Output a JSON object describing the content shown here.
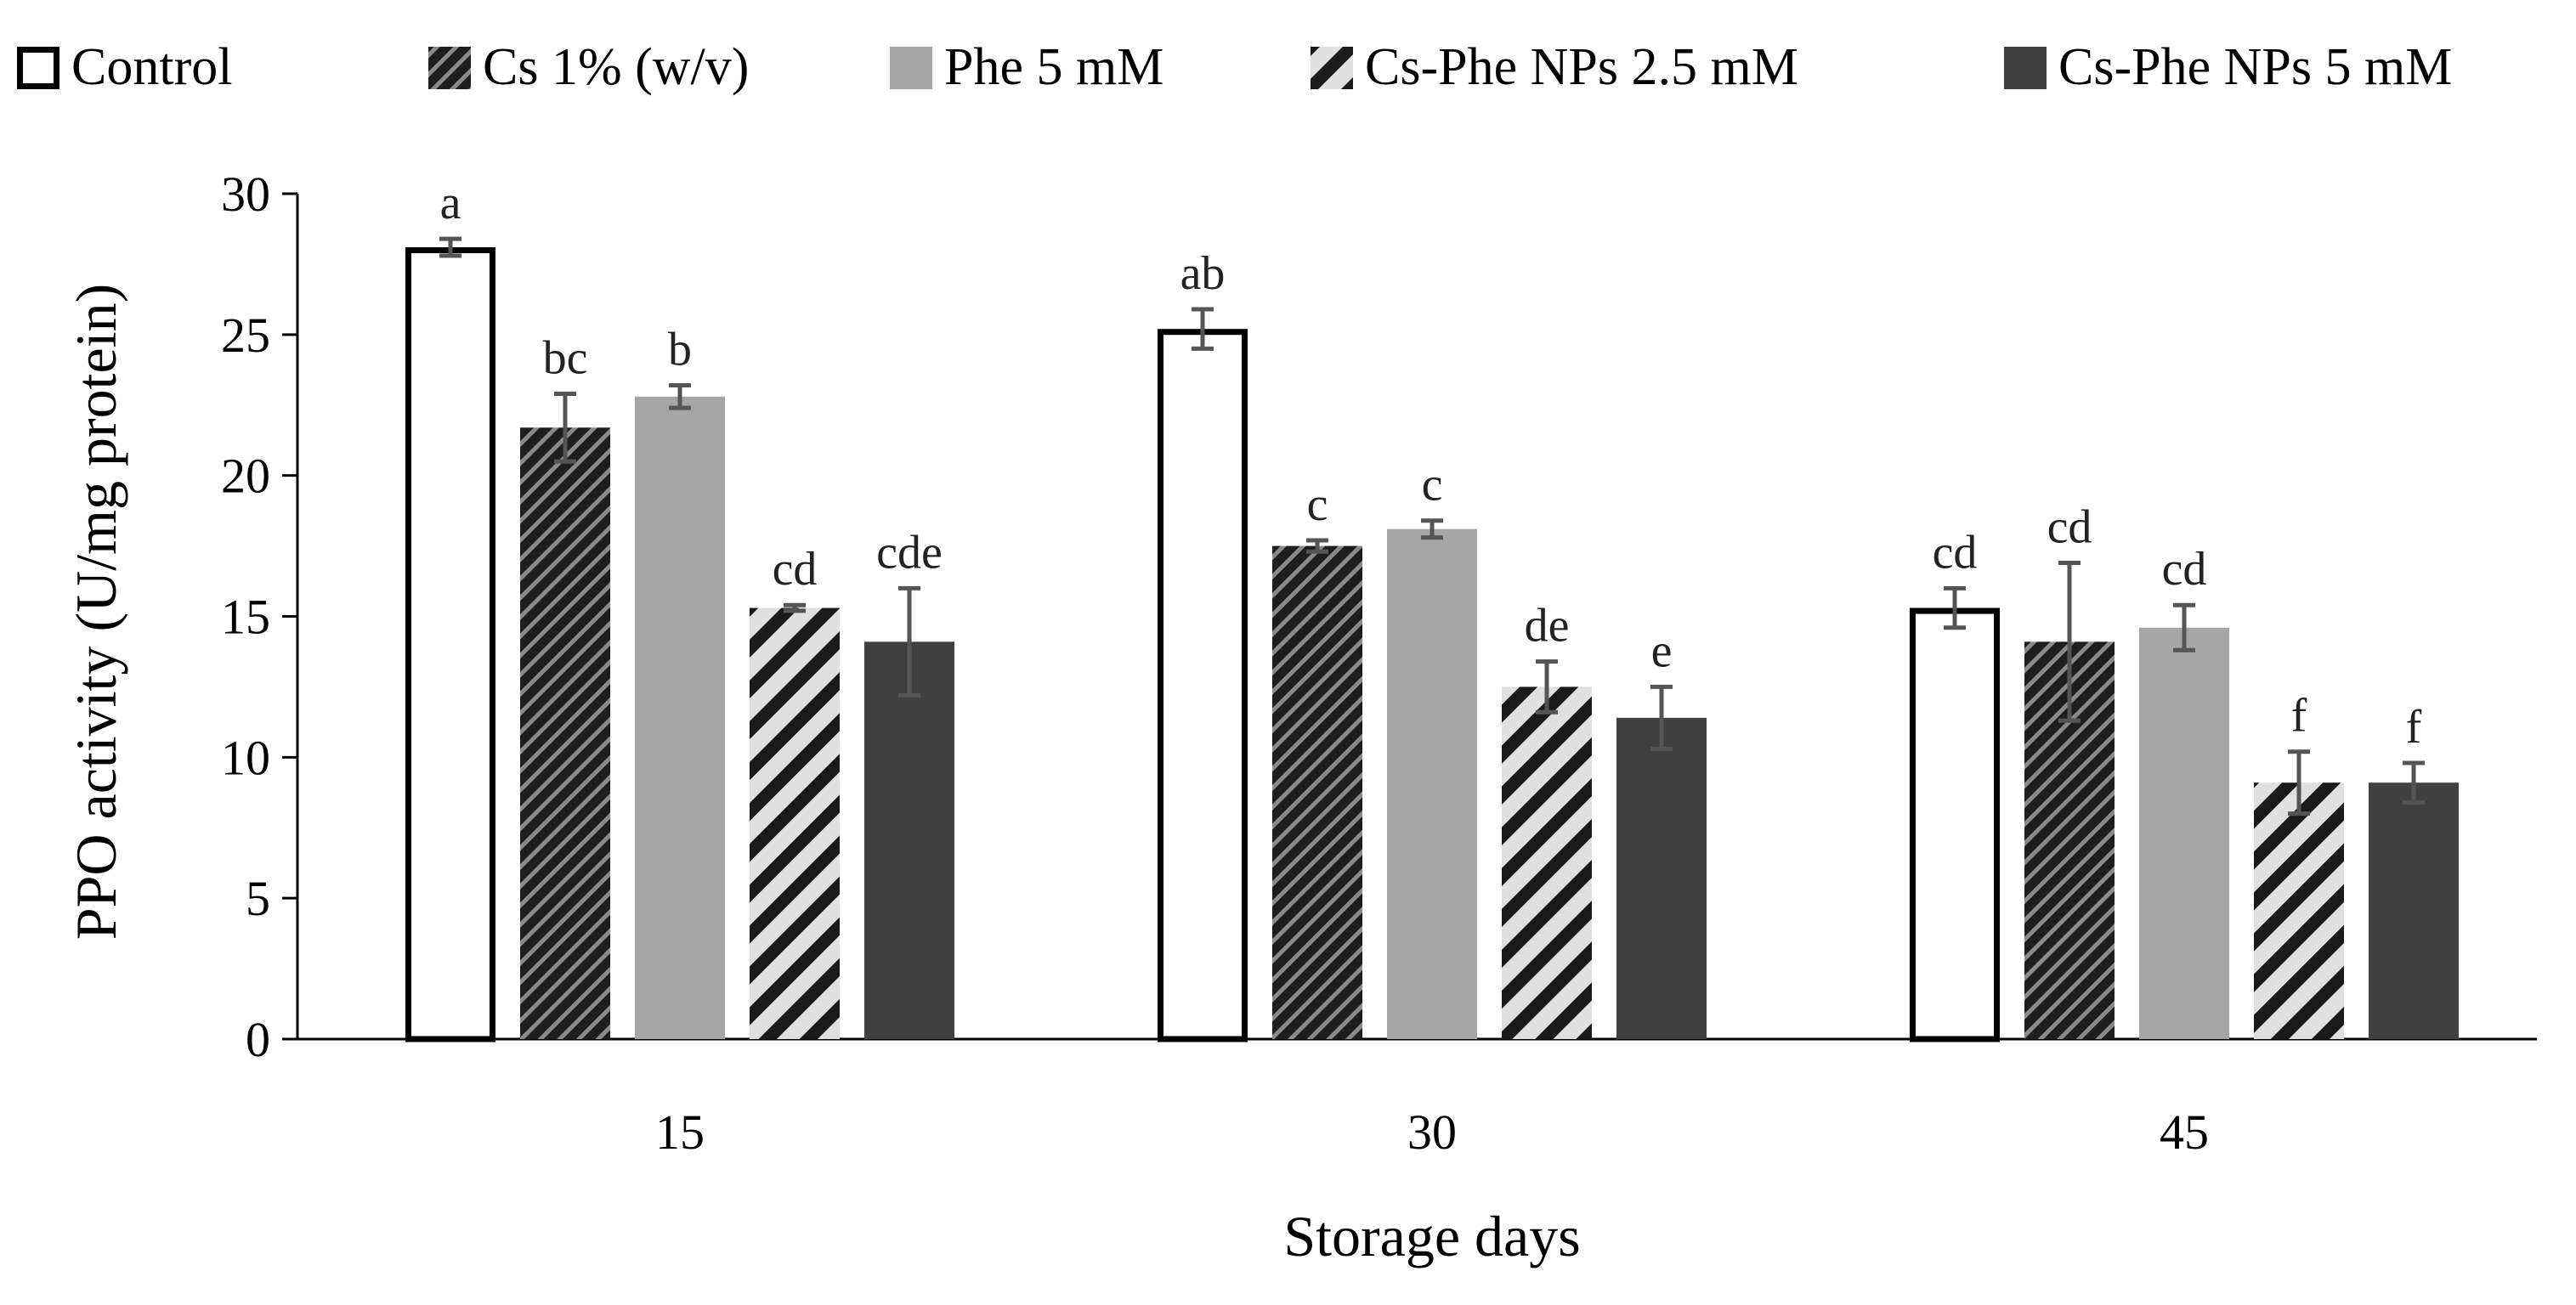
{
  "chart_data": {
    "type": "bar",
    "title": "",
    "xlabel": "Storage days",
    "ylabel": "PPO activity (U/mg protein)",
    "categories": [
      "15",
      "30",
      "45"
    ],
    "ylim": [
      0,
      30
    ],
    "yticks": [
      "0",
      "5",
      "10",
      "15",
      "20",
      "25",
      "30"
    ],
    "legend_position": "top",
    "series": [
      {
        "name": "Control",
        "style": "outline",
        "fill": "#ffffff",
        "stroke": "#000000",
        "values": [
          28.1,
          25.2,
          15.3
        ],
        "errors": [
          0.3,
          0.7,
          0.7
        ],
        "labels": [
          "a",
          "ab",
          "cd"
        ]
      },
      {
        "name": "Cs 1% (w/v)",
        "style": "dense-stripe",
        "fill": "#1e1e1e",
        "stripe": "#8a8a8a",
        "values": [
          21.7,
          17.5,
          14.1
        ],
        "errors": [
          1.2,
          0.2,
          2.8
        ],
        "labels": [
          "bc",
          "c",
          "cd"
        ]
      },
      {
        "name": "Phe 5 mM",
        "style": "solid",
        "fill": "#a6a6a6",
        "values": [
          22.8,
          18.1,
          14.6
        ],
        "errors": [
          0.4,
          0.3,
          0.8
        ],
        "labels": [
          "b",
          "c",
          "cd"
        ]
      },
      {
        "name": "Cs-Phe NPs 2.5 mM",
        "style": "wide-stripe",
        "fill": "#e0e0e0",
        "stripe": "#1a1a1a",
        "values": [
          15.3,
          12.5,
          9.1
        ],
        "errors": [
          0.1,
          0.9,
          1.1
        ],
        "labels": [
          "cd",
          "de",
          "f"
        ]
      },
      {
        "name": "Cs-Phe NPs 5 mM",
        "style": "solid",
        "fill": "#404040",
        "values": [
          14.1,
          11.4,
          9.1
        ],
        "errors": [
          1.9,
          1.1,
          0.7
        ],
        "labels": [
          "cde",
          "e",
          "f"
        ]
      }
    ]
  }
}
